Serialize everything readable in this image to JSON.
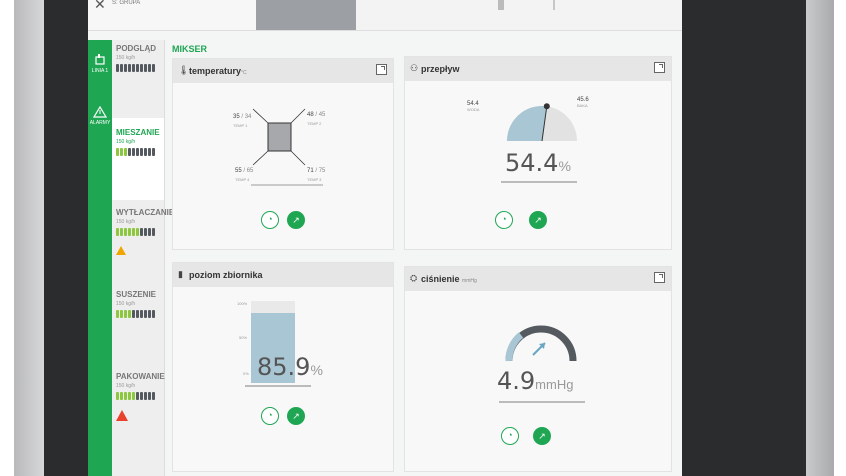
{
  "header": {
    "close_icon": "close-icon",
    "logo_text": "S: GRUPA"
  },
  "sidebar": {
    "items": [
      {
        "icon": "line-icon",
        "label": "LINIA 1"
      },
      {
        "icon": "warning-icon",
        "label": "ALARMY"
      }
    ]
  },
  "nav": {
    "items": [
      {
        "title": "PODGLĄD",
        "sub": "150 kg/h",
        "level": 0,
        "warning": "none"
      },
      {
        "title": "MIESZANIE",
        "sub": "150 kg/h",
        "level": 3,
        "warning": "none"
      },
      {
        "title": "WYTŁACZANIE",
        "sub": "150 kg/h",
        "level": 6,
        "warning": "amber"
      },
      {
        "title": "SUSZENIE",
        "sub": "150 kg/h",
        "level": 4,
        "warning": "none"
      },
      {
        "title": "PAKOWANIE",
        "sub": "150 kg/h",
        "level": 5,
        "warning": "red"
      }
    ]
  },
  "section_title": "MIKSER",
  "cards": {
    "temperature": {
      "title": "temperatury",
      "unit": "°C",
      "sensors": [
        {
          "actual": "35",
          "set": "34",
          "label": "TEMP 1"
        },
        {
          "actual": "48",
          "set": "45",
          "label": "TEMP 2"
        },
        {
          "actual": "55",
          "set": "65",
          "label": "TEMP 4"
        },
        {
          "actual": "71",
          "set": "75",
          "label": "TEMP 3"
        }
      ]
    },
    "flow": {
      "title": "przepływ",
      "left_value": "54.4",
      "left_label": "WODA",
      "right_value": "45.6",
      "right_label": "BAKA",
      "value": "54.4",
      "unit": "%",
      "fraction": 0.544
    },
    "tank": {
      "title": "poziom zbiornika",
      "scale": [
        "100%",
        "50%",
        "0%"
      ],
      "value": "85.9",
      "unit": "%",
      "fraction": 0.859
    },
    "pressure": {
      "title": "ciśnienie",
      "unit_small": "mmHg",
      "value": "4.9",
      "unit": "mmHg"
    }
  },
  "colors": {
    "accent": "#1fa653",
    "bars_on": "#8dc63f",
    "bars_off": "#555a60",
    "warning": "#f0a500",
    "alarm": "#e8412c",
    "gauge_fill": "#a9c6d4"
  }
}
